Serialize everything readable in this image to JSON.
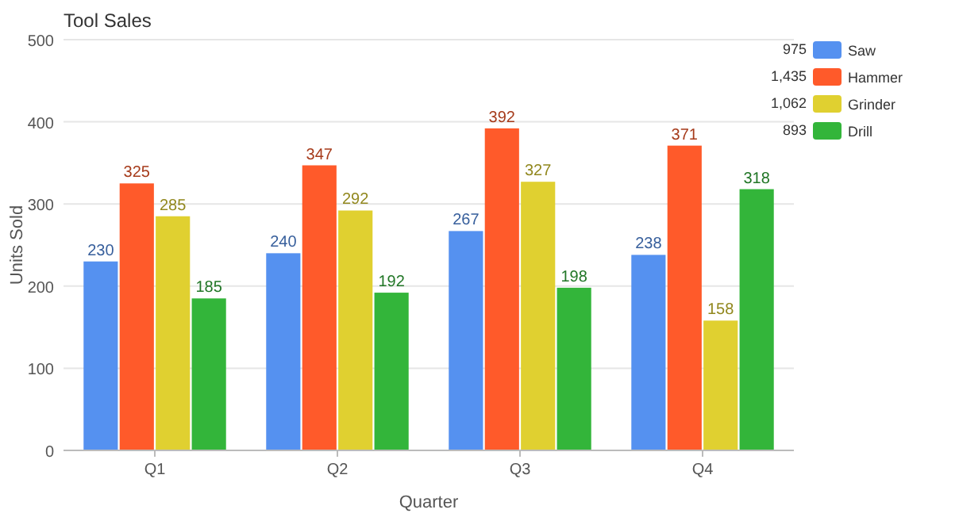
{
  "chart_data": {
    "type": "bar",
    "title": "Tool Sales",
    "xlabel": "Quarter",
    "ylabel": "Units Sold",
    "categories": [
      "Q1",
      "Q2",
      "Q3",
      "Q4"
    ],
    "series": [
      {
        "name": "Saw",
        "color": "#5591f0",
        "values": [
          230,
          240,
          267,
          238
        ]
      },
      {
        "name": "Hammer",
        "color": "#ff5a2a",
        "values": [
          325,
          347,
          392,
          371
        ]
      },
      {
        "name": "Grinder",
        "color": "#e0d030",
        "values": [
          285,
          292,
          327,
          158
        ]
      },
      {
        "name": "Drill",
        "color": "#33b53a",
        "values": [
          185,
          192,
          198,
          318
        ]
      }
    ],
    "annotations": [
      "975",
      "1,435",
      "1,062",
      "893"
    ],
    "ylim": [
      0,
      500
    ],
    "yticks": [
      0,
      100,
      200,
      300,
      400,
      500
    ],
    "grid": "y",
    "legend": "top right",
    "data_labels": true
  }
}
